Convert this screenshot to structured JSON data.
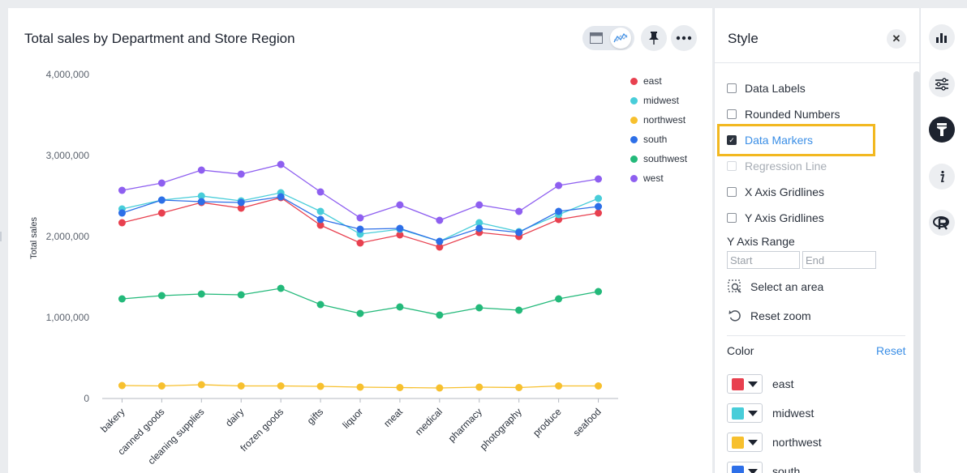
{
  "chart_card": {
    "title": "Total sales by Department and Store Region",
    "icons": [
      "table-icon",
      "line-chart-icon",
      "pin-icon",
      "more-icon"
    ]
  },
  "chart_data": {
    "type": "line",
    "ylabel": "Total sales",
    "ylim": [
      0,
      4000000
    ],
    "yticks": [
      "4,000,000",
      "3,000,000",
      "2,000,000",
      "1,000,000",
      "0"
    ],
    "yticks_values": [
      4000000,
      3000000,
      2000000,
      1000000,
      0
    ],
    "categories": [
      "bakery",
      "canned goods",
      "cleaning supplies",
      "dairy",
      "frozen goods",
      "gifts",
      "liquor",
      "meat",
      "medical",
      "pharmacy",
      "photography",
      "produce",
      "seafood"
    ],
    "legend_position": "top-right",
    "series": [
      {
        "name": "east",
        "color": "#e8404f",
        "values": [
          2170000,
          2290000,
          2420000,
          2350000,
          2480000,
          2140000,
          1920000,
          2020000,
          1870000,
          2050000,
          2000000,
          2210000,
          2290000
        ]
      },
      {
        "name": "midwest",
        "color": "#48cdd9",
        "values": [
          2340000,
          2450000,
          2500000,
          2440000,
          2540000,
          2310000,
          2030000,
          2090000,
          1940000,
          2170000,
          2060000,
          2270000,
          2470000
        ]
      },
      {
        "name": "northwest",
        "color": "#f7c02e",
        "values": [
          160000,
          155000,
          170000,
          155000,
          155000,
          150000,
          140000,
          135000,
          130000,
          140000,
          135000,
          155000,
          155000
        ]
      },
      {
        "name": "south",
        "color": "#2d6fe8",
        "values": [
          2290000,
          2450000,
          2430000,
          2420000,
          2490000,
          2210000,
          2090000,
          2100000,
          1940000,
          2100000,
          2050000,
          2310000,
          2370000
        ]
      },
      {
        "name": "southwest",
        "color": "#23b97a",
        "values": [
          1230000,
          1270000,
          1290000,
          1280000,
          1360000,
          1160000,
          1050000,
          1130000,
          1030000,
          1120000,
          1090000,
          1230000,
          1320000
        ]
      },
      {
        "name": "west",
        "color": "#8e5ff0",
        "values": [
          2570000,
          2660000,
          2820000,
          2770000,
          2890000,
          2550000,
          2230000,
          2390000,
          2200000,
          2390000,
          2310000,
          2630000,
          2710000
        ]
      }
    ]
  },
  "style_panel": {
    "title": "Style",
    "options": [
      {
        "label": "Data Labels",
        "checked": false,
        "disabled": false
      },
      {
        "label": "Rounded Numbers",
        "checked": false,
        "disabled": false
      },
      {
        "label": "Data Markers",
        "checked": true,
        "disabled": false
      },
      {
        "label": "Regression Line",
        "checked": false,
        "disabled": true
      },
      {
        "label": "X Axis Gridlines",
        "checked": false,
        "disabled": false
      },
      {
        "label": "Y Axis Gridlines",
        "checked": false,
        "disabled": false
      }
    ],
    "y_axis_range": {
      "label": "Y Axis Range",
      "start_placeholder": "Start",
      "end_placeholder": "End"
    },
    "select_area": "Select an area",
    "reset_zoom": "Reset zoom",
    "color_label": "Color",
    "reset_label": "Reset",
    "colors": [
      {
        "name": "east",
        "color": "#e8404f"
      },
      {
        "name": "midwest",
        "color": "#48cdd9"
      },
      {
        "name": "northwest",
        "color": "#f7c02e"
      },
      {
        "name": "south",
        "color": "#2d6fe8"
      }
    ]
  },
  "right_rail": {
    "icons": [
      "bar-chart-icon",
      "settings-sliders-icon",
      "style-brush-icon",
      "info-icon",
      "r-icon"
    ]
  }
}
